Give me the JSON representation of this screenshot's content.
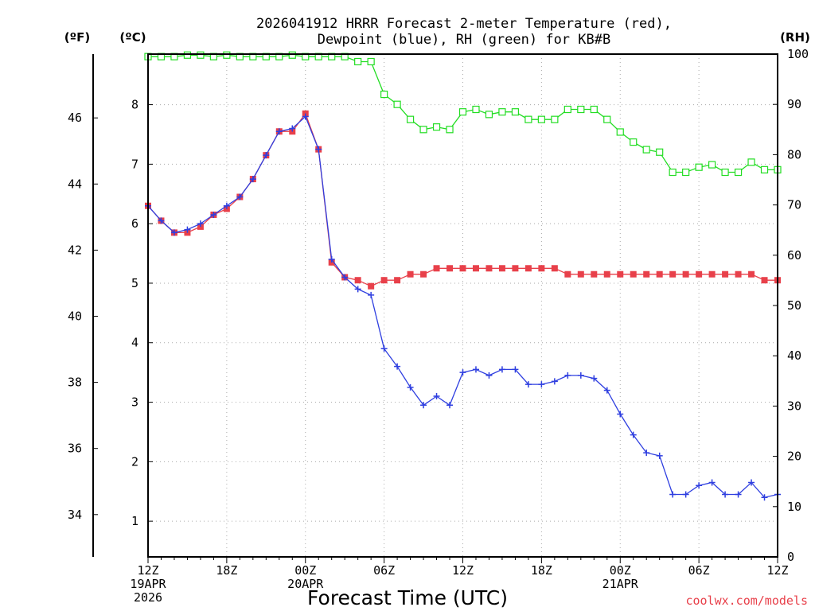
{
  "chart_data": {
    "type": "line",
    "title": "2026041912 HRRR Forecast 2-meter Temperature (red),",
    "subtitle": "Dewpoint (blue), RH (green) for KB#B",
    "xlabel": "Forecast Time (UTC)",
    "unit_f": "(ºF)",
    "unit_c": "(ºC)",
    "unit_rh": "(RH)",
    "credit": "coolwx.com/models",
    "x_hours": [
      0,
      1,
      2,
      3,
      4,
      5,
      6,
      7,
      8,
      9,
      10,
      11,
      12,
      13,
      14,
      15,
      16,
      17,
      18,
      19,
      20,
      21,
      22,
      23,
      24,
      25,
      26,
      27,
      28,
      29,
      30,
      31,
      32,
      33,
      34,
      35,
      36,
      37,
      38,
      39,
      40,
      41,
      42,
      43,
      44,
      45,
      46,
      47,
      48
    ],
    "x_tick_labels": [
      {
        "hour": 0,
        "lines": [
          "12Z",
          "19APR",
          "2026"
        ]
      },
      {
        "hour": 6,
        "lines": [
          "18Z"
        ]
      },
      {
        "hour": 12,
        "lines": [
          "00Z",
          "20APR"
        ]
      },
      {
        "hour": 18,
        "lines": [
          "06Z"
        ]
      },
      {
        "hour": 24,
        "lines": [
          "12Z"
        ]
      },
      {
        "hour": 30,
        "lines": [
          "18Z"
        ]
      },
      {
        "hour": 36,
        "lines": [
          "00Z",
          "21APR"
        ]
      },
      {
        "hour": 42,
        "lines": [
          "06Z"
        ]
      },
      {
        "hour": 48,
        "lines": [
          "12Z"
        ]
      }
    ],
    "c_axis": {
      "range": [
        0.4,
        8.85
      ],
      "ticks": [
        1,
        2,
        3,
        4,
        5,
        6,
        7,
        8
      ]
    },
    "f_axis": {
      "ticks": [
        34,
        36,
        38,
        40,
        42,
        44,
        46
      ]
    },
    "rh_axis": {
      "range": [
        0,
        100
      ],
      "ticks": [
        0,
        10,
        20,
        30,
        40,
        50,
        60,
        70,
        80,
        90,
        100
      ]
    },
    "grid": true,
    "series": [
      {
        "name": "Temperature",
        "color": "#e8404a",
        "marker": "filled-square",
        "axis": "c",
        "values": [
          6.3,
          6.05,
          5.85,
          5.85,
          5.95,
          6.15,
          6.25,
          6.45,
          6.75,
          7.15,
          7.55,
          7.55,
          7.85,
          7.25,
          5.35,
          5.1,
          5.05,
          4.95,
          5.05,
          5.05,
          5.15,
          5.15,
          5.25,
          5.25,
          5.25,
          5.25,
          5.25,
          5.25,
          5.25,
          5.25,
          5.25,
          5.25,
          5.15,
          5.15,
          5.15,
          5.15,
          5.15,
          5.15,
          5.15,
          5.15,
          5.15,
          5.15,
          5.15,
          5.15,
          5.15,
          5.15,
          5.15,
          5.05,
          5.05
        ]
      },
      {
        "name": "Dewpoint",
        "color": "#2f3fe0",
        "marker": "plus",
        "axis": "c",
        "values": [
          6.3,
          6.05,
          5.85,
          5.9,
          6.0,
          6.15,
          6.3,
          6.45,
          6.75,
          7.15,
          7.55,
          7.6,
          7.8,
          7.25,
          5.4,
          5.1,
          4.9,
          4.8,
          3.9,
          3.6,
          3.25,
          2.95,
          3.1,
          2.95,
          3.5,
          3.55,
          3.45,
          3.55,
          3.55,
          3.3,
          3.3,
          3.35,
          3.45,
          3.45,
          3.4,
          3.2,
          2.8,
          2.45,
          2.15,
          2.1,
          1.45,
          1.45,
          1.6,
          1.65,
          1.45,
          1.45,
          1.65,
          1.4,
          1.45
        ]
      },
      {
        "name": "RH",
        "color": "#22dd22",
        "marker": "open-square",
        "axis": "rh",
        "values": [
          99.5,
          99.5,
          99.5,
          99.8,
          99.8,
          99.5,
          99.8,
          99.5,
          99.5,
          99.5,
          99.5,
          99.8,
          99.5,
          99.5,
          99.5,
          99.5,
          98.5,
          98.5,
          92,
          90,
          87,
          85,
          85.5,
          85,
          88.5,
          89,
          88,
          88.5,
          88.5,
          87,
          87,
          87,
          89,
          89,
          89,
          87,
          84.5,
          82.5,
          81,
          80.5,
          76.5,
          76.5,
          77.5,
          78,
          76.5,
          76.5,
          78.5,
          77,
          77
        ]
      }
    ]
  }
}
